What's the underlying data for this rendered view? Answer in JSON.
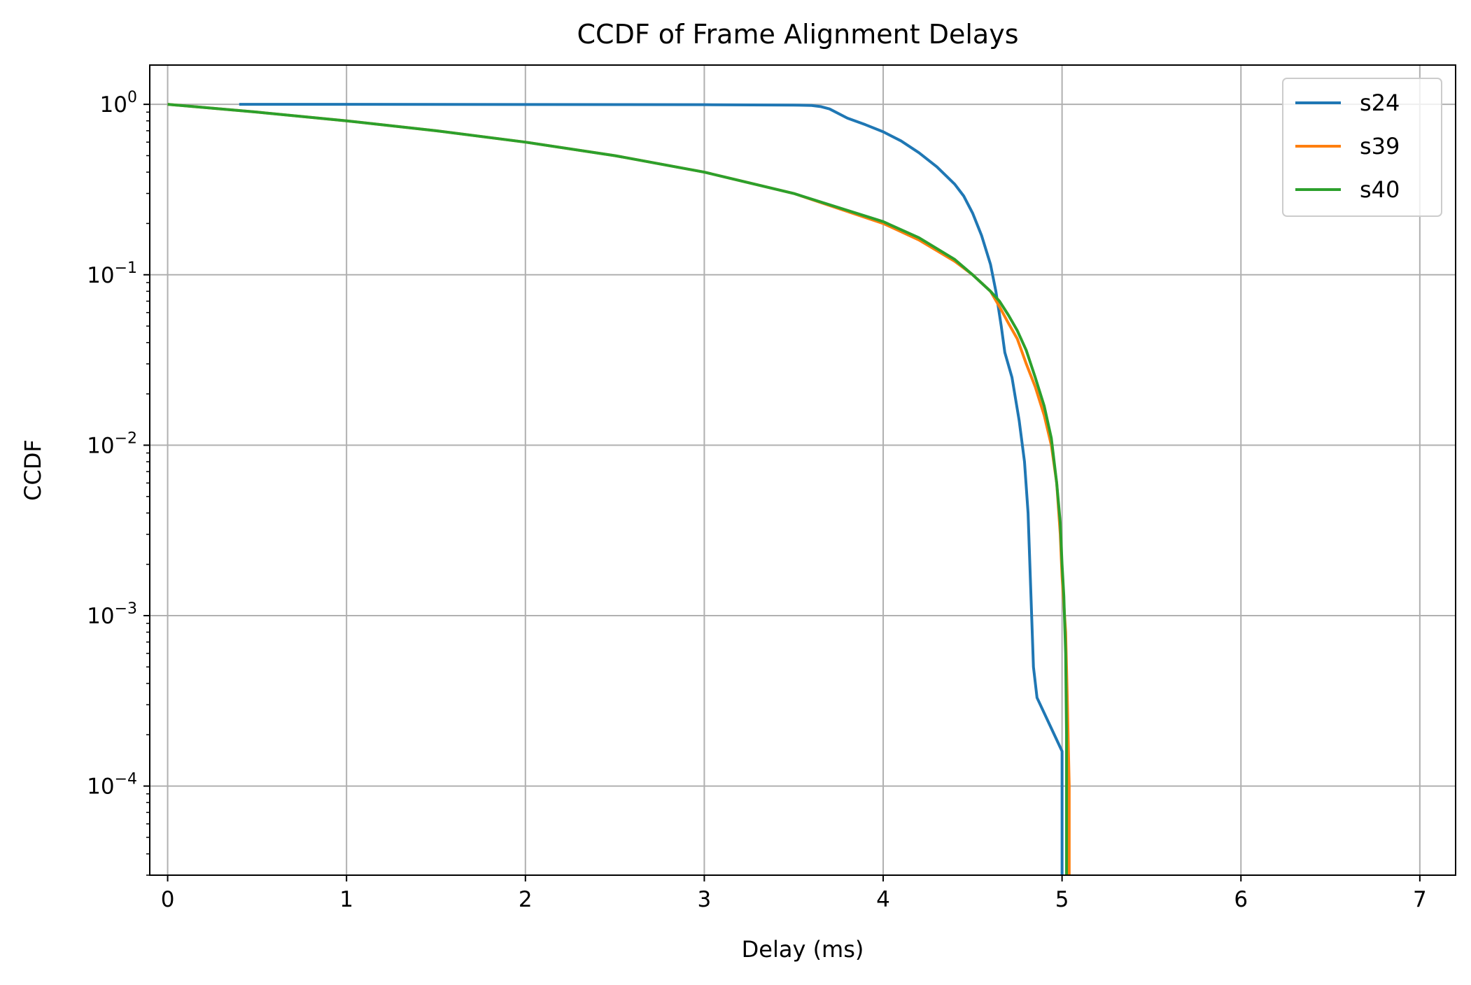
{
  "chart_data": {
    "type": "line",
    "title": "CCDF of Frame Alignment Delays",
    "xlabel": "Delay (ms)",
    "ylabel": "CCDF",
    "xlim": [
      -0.1,
      7.2
    ],
    "ylim": [
      3e-05,
      1.7
    ],
    "yscale": "log",
    "grid": true,
    "legend_position": "top-right",
    "xticks": [
      {
        "value": 0,
        "label": "0"
      },
      {
        "value": 1,
        "label": "1"
      },
      {
        "value": 2,
        "label": "2"
      },
      {
        "value": 3,
        "label": "3"
      },
      {
        "value": 4,
        "label": "4"
      },
      {
        "value": 5,
        "label": "5"
      },
      {
        "value": 6,
        "label": "6"
      },
      {
        "value": 7,
        "label": "7"
      }
    ],
    "yticks": [
      {
        "value": 1,
        "base": "10",
        "exp": "0"
      },
      {
        "value": 0.1,
        "base": "10",
        "exp": "−1"
      },
      {
        "value": 0.01,
        "base": "10",
        "exp": "−2"
      },
      {
        "value": 0.001,
        "base": "10",
        "exp": "−3"
      },
      {
        "value": 0.0001,
        "base": "10",
        "exp": "−4"
      }
    ],
    "series": [
      {
        "name": "s24",
        "color": "#1f77b4",
        "points": [
          [
            0.4,
            1.0
          ],
          [
            1.0,
            1.0
          ],
          [
            2.0,
            0.998
          ],
          [
            3.0,
            0.995
          ],
          [
            3.5,
            0.99
          ],
          [
            3.6,
            0.985
          ],
          [
            3.65,
            0.97
          ],
          [
            3.7,
            0.94
          ],
          [
            3.8,
            0.83
          ],
          [
            3.9,
            0.76
          ],
          [
            4.0,
            0.69
          ],
          [
            4.1,
            0.61
          ],
          [
            4.2,
            0.52
          ],
          [
            4.3,
            0.43
          ],
          [
            4.4,
            0.34
          ],
          [
            4.45,
            0.29
          ],
          [
            4.5,
            0.23
          ],
          [
            4.55,
            0.17
          ],
          [
            4.6,
            0.115
          ],
          [
            4.63,
            0.08
          ],
          [
            4.66,
            0.05
          ],
          [
            4.68,
            0.035
          ],
          [
            4.72,
            0.025
          ],
          [
            4.76,
            0.014
          ],
          [
            4.79,
            0.008
          ],
          [
            4.81,
            0.004
          ],
          [
            4.82,
            0.002
          ],
          [
            4.83,
            0.001
          ],
          [
            4.84,
            0.0005
          ],
          [
            4.86,
            0.00033
          ],
          [
            5.0,
            0.00016
          ],
          [
            5.0,
            3e-05
          ]
        ]
      },
      {
        "name": "s39",
        "color": "#ff7f0e",
        "points": [
          [
            0.0,
            1.0
          ],
          [
            0.5,
            0.9
          ],
          [
            1.0,
            0.8
          ],
          [
            1.5,
            0.7
          ],
          [
            2.0,
            0.6
          ],
          [
            2.5,
            0.5
          ],
          [
            3.0,
            0.4
          ],
          [
            3.5,
            0.3
          ],
          [
            4.0,
            0.2
          ],
          [
            4.2,
            0.16
          ],
          [
            4.4,
            0.12
          ],
          [
            4.5,
            0.1
          ],
          [
            4.6,
            0.08
          ],
          [
            4.65,
            0.065
          ],
          [
            4.7,
            0.052
          ],
          [
            4.75,
            0.042
          ],
          [
            4.8,
            0.03
          ],
          [
            4.85,
            0.022
          ],
          [
            4.9,
            0.015
          ],
          [
            4.94,
            0.01
          ],
          [
            4.97,
            0.006
          ],
          [
            4.99,
            0.003
          ],
          [
            5.0,
            0.0017
          ],
          [
            5.02,
            0.0008
          ],
          [
            5.03,
            0.0003
          ],
          [
            5.04,
            0.0001
          ],
          [
            5.04,
            3e-05
          ]
        ]
      },
      {
        "name": "s40",
        "color": "#2ca02c",
        "points": [
          [
            0.0,
            1.0
          ],
          [
            0.5,
            0.9
          ],
          [
            1.0,
            0.8
          ],
          [
            1.5,
            0.7
          ],
          [
            2.0,
            0.6
          ],
          [
            2.5,
            0.5
          ],
          [
            3.0,
            0.4
          ],
          [
            3.5,
            0.3
          ],
          [
            4.0,
            0.205
          ],
          [
            4.2,
            0.165
          ],
          [
            4.4,
            0.123
          ],
          [
            4.5,
            0.1
          ],
          [
            4.6,
            0.08
          ],
          [
            4.65,
            0.07
          ],
          [
            4.7,
            0.058
          ],
          [
            4.75,
            0.047
          ],
          [
            4.8,
            0.036
          ],
          [
            4.85,
            0.025
          ],
          [
            4.9,
            0.017
          ],
          [
            4.94,
            0.011
          ],
          [
            4.97,
            0.006
          ],
          [
            4.99,
            0.0035
          ],
          [
            5.0,
            0.002
          ],
          [
            5.01,
            0.0013
          ],
          [
            5.02,
            0.0006
          ],
          [
            5.025,
            0.0002
          ],
          [
            5.025,
            3e-05
          ]
        ]
      }
    ]
  }
}
